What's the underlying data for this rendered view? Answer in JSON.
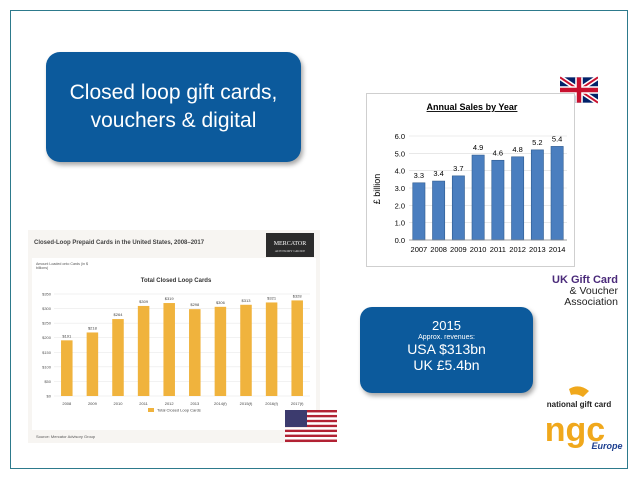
{
  "slide": {
    "headline": "Closed loop gift cards,\nvouchers & digital",
    "revenues": {
      "year": "2015",
      "note": "Approx. revenues:",
      "usa": "USA $313bn",
      "uk": "UK £5.4bn"
    },
    "logos": {
      "uk_association": [
        "UK Gift Card",
        "& Voucher",
        "Association"
      ],
      "ngc_top": "national gift card",
      "ngc_mark": "ngc",
      "ngc_region": "Europe",
      "mercator": [
        "MERCATOR",
        "ADVISORY GROUP"
      ]
    },
    "flags": [
      "uk-flag-icon",
      "us-flag-icon"
    ],
    "colors": {
      "box_blue": "#0c5a9c",
      "uk_bar": "#4a7ebf",
      "us_bar": "#f0b33d"
    }
  },
  "chart_data": [
    {
      "type": "bar",
      "title": "Annual Sales by Year",
      "ylabel": "£ billion",
      "categories": [
        "2007",
        "2008",
        "2009",
        "2010",
        "2011",
        "2012",
        "2013",
        "2014"
      ],
      "values": [
        3.3,
        3.4,
        3.7,
        4.9,
        4.6,
        4.8,
        5.2,
        5.4
      ],
      "value_labels": [
        "3.3",
        "3.4",
        "3.7",
        "4.9",
        "4.6",
        "4.8",
        "5.2",
        "5.4"
      ],
      "yticks": [
        "0.0",
        "1.0",
        "2.0",
        "3.0",
        "4.0",
        "5.0",
        "6.0"
      ],
      "ylim": [
        0,
        6
      ]
    },
    {
      "type": "bar",
      "header": "Closed-Loop Prepaid Cards in the United States, 2008–2017",
      "title": "Total Closed Loop Cards",
      "ylabel": "Amount Loaded onto Cards (in $ billions)",
      "categories": [
        "2008",
        "2009",
        "2010",
        "2011",
        "2012",
        "2013",
        "2014(f)",
        "2015(f)",
        "2016(f)",
        "2017(f)"
      ],
      "values": [
        191,
        218,
        264,
        309,
        319,
        298,
        306,
        313,
        321,
        328
      ],
      "value_labels": [
        "$191",
        "$218",
        "$264",
        "$309",
        "$319",
        "$298",
        "$306",
        "$313",
        "$321",
        "$328"
      ],
      "yticks": [
        "$0",
        "$50",
        "$100",
        "$150",
        "$200",
        "$250",
        "$300",
        "$350"
      ],
      "ylim": [
        0,
        350
      ],
      "legend": "Total Closed Loop Cards",
      "source": "Source: Mercator Advisory Group"
    }
  ]
}
